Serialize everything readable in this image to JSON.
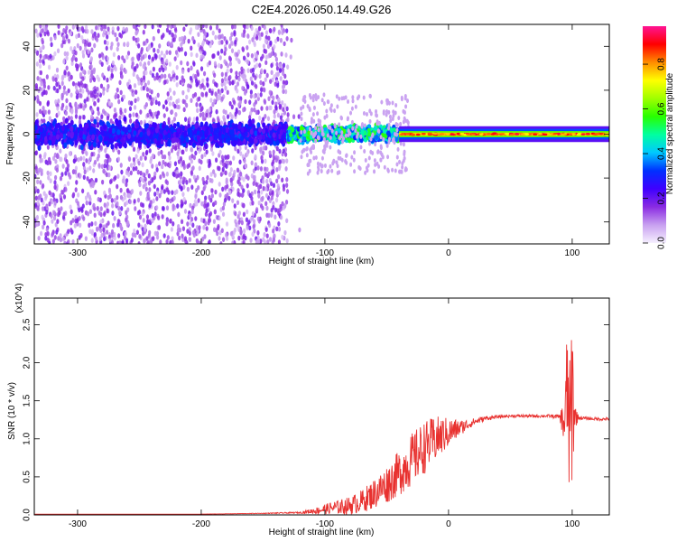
{
  "page_title": "C2E4.2026.050.14.49.G26",
  "chart_data": [
    {
      "type": "heatmap",
      "xlabel": "Height of straight line (km)",
      "ylabel": "Frequency (Hz)",
      "xlim": [
        -335,
        130
      ],
      "ylim": [
        -50,
        50
      ],
      "xticks": [
        -300,
        -200,
        -100,
        0,
        100
      ],
      "yticks": [
        -40,
        -20,
        0,
        20,
        40
      ],
      "grid": false,
      "colorbar": {
        "label": "Normalized spectral amplitude",
        "range": [
          0,
          0.97
        ],
        "ticks": [
          0.0,
          0.2,
          0.4,
          0.6,
          0.8
        ],
        "colors": [
          "#f6f0ff",
          "#c8a0f0",
          "#8a2be2",
          "#3f00ff",
          "#0030ff",
          "#00c8ff",
          "#00ffa0",
          "#28ff00",
          "#a0ff00",
          "#ffff00",
          "#ff8c00",
          "#ff0000",
          "#ff1493"
        ]
      },
      "description_regions": [
        {
          "x_range": [
            -335,
            -130
          ],
          "freq_spread_hz": 50,
          "amplitude": "low (0.0–0.25), concentrated near 0 Hz at ~0.3"
        },
        {
          "x_range": [
            -130,
            -40
          ],
          "freq_spread_hz": 8,
          "amplitude": "0.3–0.6 near 0 Hz"
        },
        {
          "x_range": [
            -40,
            130
          ],
          "freq_spread_hz": 3,
          "amplitude": "0.6–0.95 narrow band at 0 Hz"
        }
      ]
    },
    {
      "type": "line",
      "xlabel": "Height of straight line (km)",
      "ylabel": "SNR (10 * v/v)",
      "yscale_note": "(x10^4)",
      "xlim": [
        -335,
        130
      ],
      "ylim": [
        0,
        2.85
      ],
      "xticks": [
        -300,
        -200,
        -100,
        0,
        100
      ],
      "yticks": [
        0.0,
        0.5,
        1.0,
        1.5,
        2.0,
        2.5
      ],
      "color": "#e8312f",
      "x": [
        -335,
        -300,
        -250,
        -200,
        -150,
        -120,
        -105,
        -95,
        -80,
        -70,
        -60,
        -50,
        -40,
        -30,
        -20,
        -10,
        0,
        10,
        20,
        30,
        40,
        50,
        60,
        70,
        80,
        90,
        94,
        96,
        98,
        100,
        102,
        105,
        110,
        120,
        130
      ],
      "y": [
        0.01,
        0.01,
        0.01,
        0.01,
        0.02,
        0.03,
        0.06,
        0.09,
        0.12,
        0.18,
        0.28,
        0.4,
        0.55,
        0.72,
        0.88,
        1.0,
        1.08,
        1.15,
        1.22,
        1.27,
        1.29,
        1.3,
        1.3,
        1.3,
        1.3,
        1.29,
        1.2,
        1.7,
        1.0,
        1.6,
        1.3,
        1.28,
        1.27,
        1.26,
        1.26
      ],
      "noise_amplitude": [
        0,
        0,
        0,
        0,
        0.005,
        0.01,
        0.05,
        0.08,
        0.12,
        0.15,
        0.2,
        0.25,
        0.3,
        0.35,
        0.35,
        0.3,
        0.2,
        0.1,
        0.05,
        0.03,
        0.02,
        0.02,
        0.02,
        0.02,
        0.02,
        0.03,
        0.4,
        0.9,
        1.0,
        1.3,
        0.2,
        0.03,
        0.02,
        0.02,
        0.02
      ]
    }
  ]
}
